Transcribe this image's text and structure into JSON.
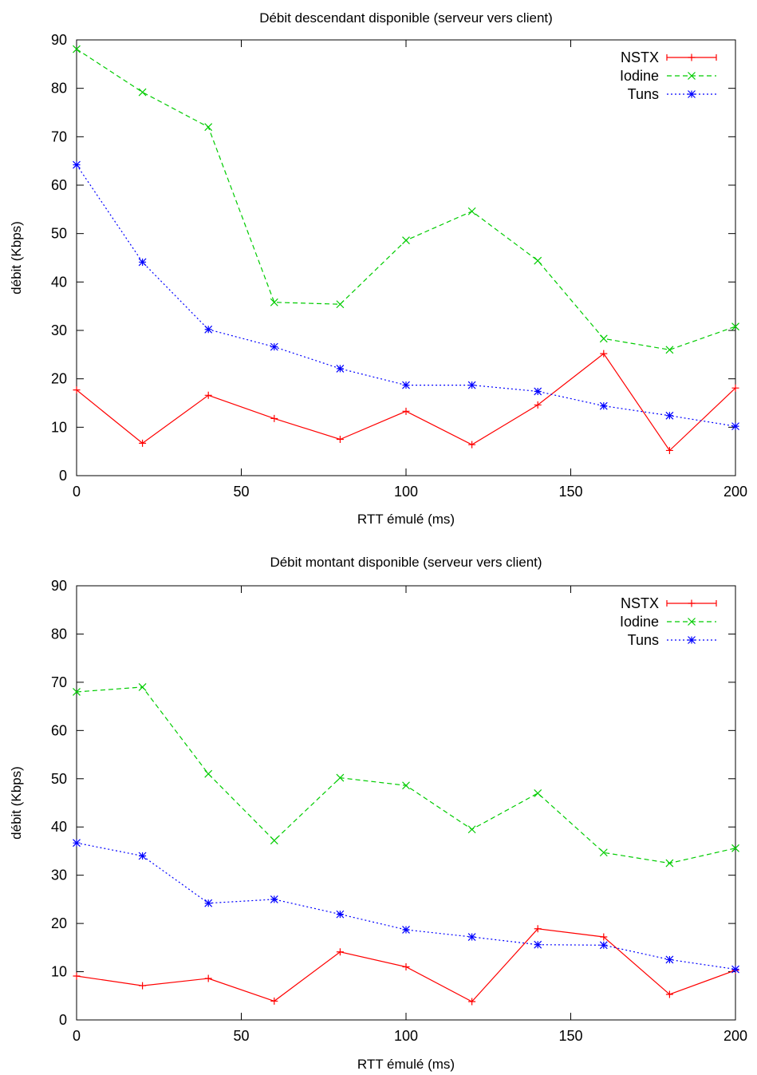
{
  "chart_data": [
    {
      "type": "line",
      "title": "Débit descendant disponible (serveur vers client)",
      "xlabel": "RTT émulé (ms)",
      "ylabel": "débit (Kbps)",
      "xlim": [
        0,
        200
      ],
      "ylim": [
        0,
        90
      ],
      "xticks": [
        0,
        50,
        100,
        150,
        200
      ],
      "yticks": [
        0,
        10,
        20,
        30,
        40,
        50,
        60,
        70,
        80,
        90
      ],
      "grid": false,
      "legend_position": "top-right",
      "x": [
        0,
        20,
        40,
        60,
        80,
        100,
        120,
        140,
        160,
        180,
        200
      ],
      "series": [
        {
          "name": "NSTX",
          "color": "#ff0000",
          "dash": "solid",
          "marker": "plus",
          "values": [
            17.7,
            6.7,
            16.6,
            11.8,
            7.5,
            13.3,
            6.4,
            14.6,
            25.2,
            5.2,
            18.1
          ]
        },
        {
          "name": "Iodine",
          "color": "#00cc00",
          "dash": "dashed",
          "marker": "cross",
          "values": [
            88.1,
            79.2,
            72.0,
            35.8,
            35.4,
            48.6,
            54.6,
            44.4,
            28.3,
            26.0,
            30.8
          ]
        },
        {
          "name": "Tuns",
          "color": "#0000ff",
          "dash": "dotted",
          "marker": "star",
          "values": [
            64.2,
            44.1,
            30.2,
            26.6,
            22.1,
            18.7,
            18.7,
            17.4,
            14.4,
            12.4,
            10.2
          ]
        }
      ]
    },
    {
      "type": "line",
      "title": "Débit montant disponible (serveur vers client)",
      "xlabel": "RTT émulé (ms)",
      "ylabel": "débit (Kbps)",
      "xlim": [
        0,
        200
      ],
      "ylim": [
        0,
        90
      ],
      "xticks": [
        0,
        50,
        100,
        150,
        200
      ],
      "yticks": [
        0,
        10,
        20,
        30,
        40,
        50,
        60,
        70,
        80,
        90
      ],
      "grid": false,
      "legend_position": "top-right",
      "x": [
        0,
        20,
        40,
        60,
        80,
        100,
        120,
        140,
        160,
        180,
        200
      ],
      "series": [
        {
          "name": "NSTX",
          "color": "#ff0000",
          "dash": "solid",
          "marker": "plus",
          "values": [
            9.1,
            7.1,
            8.6,
            3.9,
            14.1,
            11.0,
            3.8,
            18.9,
            17.2,
            5.3,
            10.3
          ]
        },
        {
          "name": "Iodine",
          "color": "#00cc00",
          "dash": "dashed",
          "marker": "cross",
          "values": [
            68.0,
            69.0,
            51.0,
            37.2,
            50.2,
            48.6,
            39.5,
            47.0,
            34.7,
            32.5,
            35.6
          ]
        },
        {
          "name": "Tuns",
          "color": "#0000ff",
          "dash": "dotted",
          "marker": "star",
          "values": [
            36.7,
            34.0,
            24.2,
            25.0,
            21.9,
            18.7,
            17.2,
            15.6,
            15.5,
            12.5,
            10.5
          ]
        }
      ]
    }
  ]
}
